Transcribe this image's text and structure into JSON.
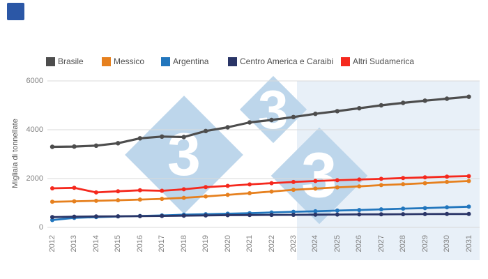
{
  "logo": {
    "color": "#2b57a6"
  },
  "legend": {
    "items": [
      {
        "label": "Brasile",
        "color": "#4d4d4d"
      },
      {
        "label": "Messico",
        "color": "#e6801e"
      },
      {
        "label": "Argentina",
        "color": "#2276bd"
      },
      {
        "label": "Centro America e Caraibi",
        "color": "#2a3567"
      },
      {
        "label": "Altri Sudamerica",
        "color": "#f5291e"
      }
    ]
  },
  "y_axis": {
    "title": "Migliaia di tonnellate",
    "tick_labels": [
      "0",
      "2000",
      "4000",
      "6000"
    ]
  },
  "x_axis": {
    "tick_labels": [
      "2012",
      "2013",
      "2014",
      "2015",
      "2016",
      "2017",
      "2018",
      "2019",
      "2020",
      "2021",
      "2022",
      "2023",
      "2024",
      "2025",
      "2026",
      "2027",
      "2028",
      "2029",
      "2030",
      "2031"
    ]
  },
  "watermark": {
    "digit": "3",
    "color": "#bdd6eb"
  },
  "chart_data": {
    "type": "line",
    "title": "",
    "xlabel": "",
    "ylabel": "Migliaia di tonnellate",
    "x": [
      2012,
      2013,
      2014,
      2015,
      2016,
      2017,
      2018,
      2019,
      2020,
      2021,
      2022,
      2023,
      2024,
      2025,
      2026,
      2027,
      2028,
      2029,
      2030,
      2031
    ],
    "series": [
      {
        "name": "Brasile",
        "color": "#4d4d4d",
        "values": [
          3300,
          3310,
          3350,
          3450,
          3650,
          3720,
          3700,
          3950,
          4100,
          4300,
          4400,
          4520,
          4650,
          4760,
          4880,
          5000,
          5100,
          5190,
          5270,
          5350
        ]
      },
      {
        "name": "Messico",
        "color": "#e6801e",
        "values": [
          1050,
          1070,
          1090,
          1110,
          1140,
          1170,
          1210,
          1270,
          1330,
          1400,
          1470,
          1540,
          1590,
          1640,
          1680,
          1730,
          1770,
          1810,
          1860,
          1900
        ]
      },
      {
        "name": "Argentina",
        "color": "#2276bd",
        "values": [
          300,
          390,
          420,
          450,
          470,
          490,
          520,
          540,
          560,
          580,
          610,
          640,
          660,
          690,
          710,
          740,
          770,
          790,
          820,
          850
        ]
      },
      {
        "name": "Centro America e Caraibi",
        "color": "#2a3567",
        "values": [
          420,
          440,
          450,
          455,
          460,
          470,
          480,
          490,
          500,
          505,
          510,
          515,
          520,
          525,
          530,
          535,
          540,
          545,
          548,
          550
        ]
      },
      {
        "name": "Altri Sudamerica",
        "color": "#f5291e",
        "values": [
          1600,
          1620,
          1430,
          1480,
          1520,
          1500,
          1560,
          1650,
          1700,
          1760,
          1810,
          1860,
          1900,
          1930,
          1960,
          1990,
          2020,
          2050,
          2080,
          2100
        ]
      }
    ],
    "ylim": [
      0,
      6000
    ],
    "yticks": [
      0,
      2000,
      4000,
      6000
    ],
    "grid": "horizontal-only",
    "legend_position": "top",
    "forecast_shaded_region": {
      "from_year": 2023,
      "to_year": 2031
    },
    "watermark_text": "333"
  }
}
